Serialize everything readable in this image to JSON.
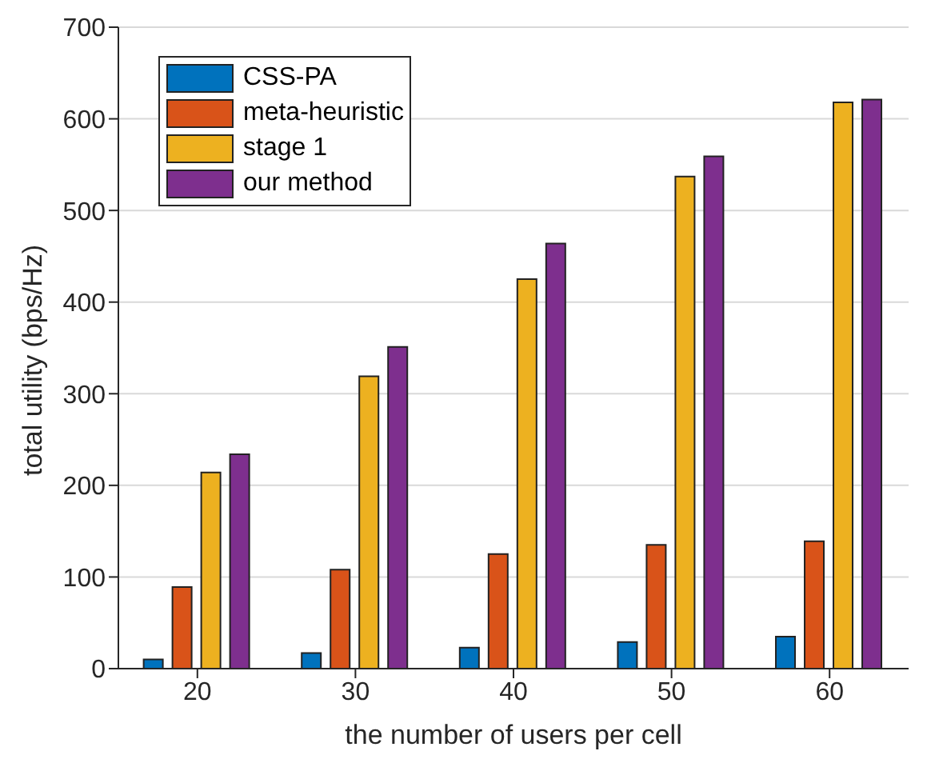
{
  "chart_data": {
    "type": "bar",
    "xlabel": "the number of users per cell",
    "ylabel": "total utility (bps/Hz)",
    "categories": [
      "20",
      "30",
      "40",
      "50",
      "60"
    ],
    "series": [
      {
        "name": "CSS-PA",
        "color": "#0072bd",
        "values": [
          10,
          17,
          23,
          29,
          35
        ]
      },
      {
        "name": "meta-heuristic",
        "color": "#d95319",
        "values": [
          89,
          108,
          125,
          135,
          139
        ]
      },
      {
        "name": "stage 1",
        "color": "#edb120",
        "values": [
          214,
          319,
          425,
          537,
          618
        ]
      },
      {
        "name": "our method",
        "color": "#7e2f8e",
        "values": [
          234,
          351,
          464,
          559,
          621
        ]
      }
    ],
    "ylim": [
      0,
      700
    ],
    "yticks": [
      0,
      100,
      200,
      300,
      400,
      500,
      600,
      700
    ],
    "grid": "y",
    "legend": "top left"
  }
}
